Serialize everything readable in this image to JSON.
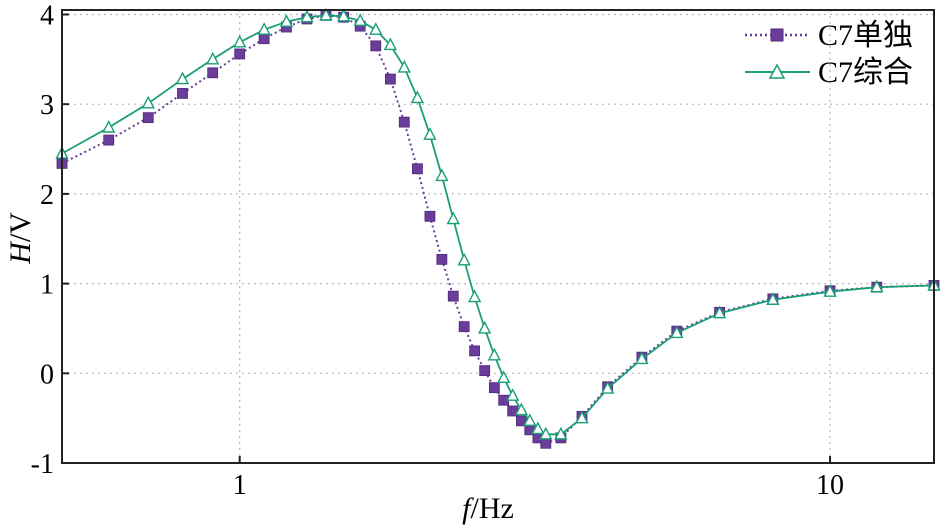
{
  "chart_data": {
    "type": "line",
    "xscale": "log",
    "xlim": [
      0.5,
      15
    ],
    "ylim": [
      -1,
      4.05
    ],
    "xticks": [
      1,
      10
    ],
    "xtick_labels": [
      "1",
      "10"
    ],
    "yticks": [
      -1,
      0,
      1,
      2,
      3,
      4
    ],
    "ytick_labels": [
      "-1",
      "0",
      "1",
      "2",
      "3",
      "4"
    ],
    "xlabel_italic": "f",
    "xlabel_rest": "/Hz",
    "ylabel_italic": "H",
    "ylabel_rest": "/V",
    "grid": true,
    "legend_position": "top-right",
    "series": [
      {
        "name": "C7单独",
        "color": "#6a3d9a",
        "line_style": "dotted",
        "marker": "square",
        "x": [
          0.5,
          0.6,
          0.7,
          0.8,
          0.9,
          1.0,
          1.1,
          1.2,
          1.3,
          1.4,
          1.5,
          1.6,
          1.7,
          1.8,
          1.9,
          2.0,
          2.1,
          2.2,
          2.3,
          2.4,
          2.5,
          2.6,
          2.7,
          2.8,
          2.9,
          3.0,
          3.1,
          3.2,
          3.3,
          3.5,
          3.8,
          4.2,
          4.8,
          5.5,
          6.5,
          8.0,
          10.0,
          12.0,
          15.0
        ],
        "y": [
          2.34,
          2.6,
          2.85,
          3.12,
          3.35,
          3.56,
          3.73,
          3.86,
          3.95,
          3.99,
          3.97,
          3.87,
          3.65,
          3.28,
          2.8,
          2.28,
          1.75,
          1.27,
          0.86,
          0.52,
          0.25,
          0.03,
          -0.16,
          -0.3,
          -0.42,
          -0.53,
          -0.63,
          -0.72,
          -0.78,
          -0.72,
          -0.48,
          -0.15,
          0.18,
          0.47,
          0.68,
          0.83,
          0.92,
          0.96,
          0.98
        ]
      },
      {
        "name": "C7综合",
        "color": "#1a9e77",
        "line_style": "solid",
        "marker": "triangle",
        "x": [
          0.5,
          0.6,
          0.7,
          0.8,
          0.9,
          1.0,
          1.1,
          1.2,
          1.3,
          1.4,
          1.5,
          1.6,
          1.7,
          1.8,
          1.9,
          2.0,
          2.1,
          2.2,
          2.3,
          2.4,
          2.5,
          2.6,
          2.7,
          2.8,
          2.9,
          3.0,
          3.1,
          3.2,
          3.3,
          3.5,
          3.8,
          4.2,
          4.8,
          5.5,
          6.5,
          8.0,
          10.0,
          12.0,
          15.0
        ],
        "y": [
          2.45,
          2.74,
          3.01,
          3.28,
          3.5,
          3.69,
          3.83,
          3.92,
          3.97,
          3.99,
          3.98,
          3.93,
          3.83,
          3.66,
          3.41,
          3.07,
          2.66,
          2.2,
          1.72,
          1.26,
          0.85,
          0.5,
          0.2,
          -0.05,
          -0.25,
          -0.41,
          -0.53,
          -0.62,
          -0.68,
          -0.68,
          -0.5,
          -0.17,
          0.16,
          0.45,
          0.67,
          0.82,
          0.91,
          0.96,
          0.98
        ]
      }
    ]
  }
}
